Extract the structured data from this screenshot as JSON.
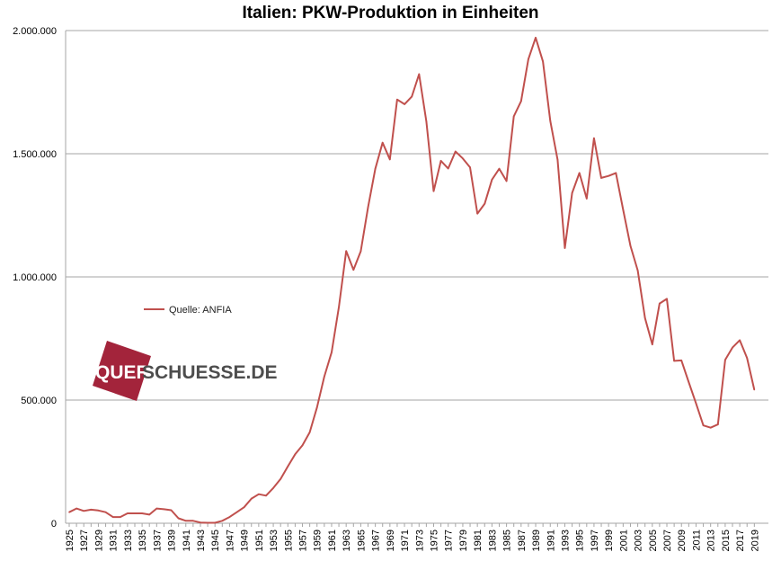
{
  "chart_data": {
    "type": "line",
    "title": "Italien: PKW-Produktion  in Einheiten",
    "xlabel": "",
    "ylabel": "",
    "ylim": [
      0,
      2000000
    ],
    "yticks": [
      0,
      500000,
      1000000,
      1500000,
      2000000
    ],
    "ytick_labels": [
      "0",
      "500.000",
      "1.000.000",
      "1.500.000",
      "2.000.000"
    ],
    "grid": "horizontal",
    "legend_position": "middle-left",
    "line_color": "#c0504d",
    "x_tick_labels": [
      "1925",
      "1927",
      "1929",
      "1931",
      "1933",
      "1935",
      "1937",
      "1939",
      "1941",
      "1943",
      "1945",
      "1947",
      "1949",
      "1951",
      "1953",
      "1955",
      "1957",
      "1959",
      "1961",
      "1963",
      "1965",
      "1967",
      "1969",
      "1971",
      "1973",
      "1975",
      "1977",
      "1979",
      "1981",
      "1983",
      "1985",
      "1987",
      "1989",
      "1991",
      "1993",
      "1995",
      "1997",
      "1999",
      "2001",
      "2003",
      "2005",
      "2007",
      "2009",
      "2011",
      "2013",
      "2015",
      "2017",
      "2019"
    ],
    "series": [
      {
        "name": "Quelle: ANFIA",
        "x": [
          1925,
          1926,
          1927,
          1928,
          1929,
          1930,
          1931,
          1932,
          1933,
          1934,
          1935,
          1936,
          1937,
          1938,
          1939,
          1940,
          1941,
          1942,
          1943,
          1944,
          1945,
          1946,
          1947,
          1948,
          1949,
          1950,
          1951,
          1952,
          1953,
          1954,
          1955,
          1956,
          1957,
          1958,
          1959,
          1960,
          1961,
          1962,
          1963,
          1964,
          1965,
          1966,
          1967,
          1968,
          1969,
          1970,
          1971,
          1972,
          1973,
          1974,
          1975,
          1976,
          1977,
          1978,
          1979,
          1980,
          1981,
          1982,
          1983,
          1984,
          1985,
          1986,
          1987,
          1988,
          1989,
          1990,
          1991,
          1992,
          1993,
          1994,
          1995,
          1996,
          1997,
          1998,
          1999,
          2000,
          2001,
          2002,
          2003,
          2004,
          2005,
          2006,
          2007,
          2008,
          2009,
          2010,
          2011,
          2012,
          2013,
          2014,
          2015,
          2016,
          2017,
          2018,
          2019
        ],
        "values": [
          45000,
          60000,
          50000,
          55000,
          52000,
          45000,
          25000,
          25000,
          40000,
          40000,
          40000,
          35000,
          60000,
          57000,
          53000,
          20000,
          10000,
          10000,
          3000,
          2000,
          2000,
          10000,
          25000,
          45000,
          65000,
          100000,
          118000,
          112000,
          143000,
          180000,
          231000,
          280000,
          316000,
          369000,
          470000,
          595000,
          694000,
          878000,
          1105000,
          1029000,
          1104000,
          1282000,
          1439000,
          1545000,
          1477000,
          1720000,
          1701000,
          1732000,
          1823000,
          1631000,
          1348000,
          1471000,
          1440000,
          1509000,
          1481000,
          1445000,
          1257000,
          1297000,
          1395000,
          1439000,
          1389000,
          1652000,
          1713000,
          1884000,
          1971000,
          1875000,
          1633000,
          1476000,
          1117000,
          1341000,
          1422000,
          1318000,
          1563000,
          1402000,
          1410000,
          1422000,
          1272000,
          1126000,
          1026000,
          833000,
          726000,
          892000,
          911000,
          659000,
          661000,
          573000,
          486000,
          397000,
          388000,
          401000,
          663000,
          713000,
          743000,
          671000,
          542000
        ]
      }
    ]
  },
  "watermark": {
    "text_part1": "QUER",
    "text_part2": "SCHUESSE.DE",
    "box_color": "#a3243b",
    "text_color": "#4d4d4d"
  }
}
